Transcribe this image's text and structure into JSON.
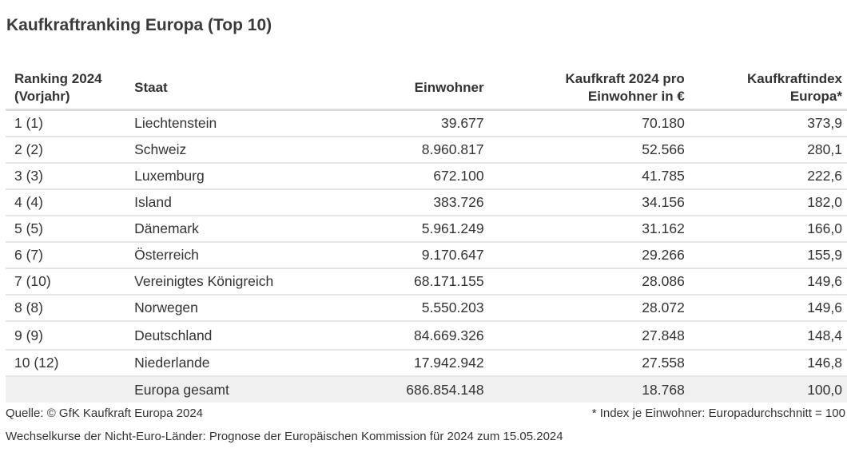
{
  "title": "Kaufkraftranking Europa (Top 10)",
  "table": {
    "headers": {
      "rank_line1": "Ranking 2024",
      "rank_line2": "(Vorjahr)",
      "state": "Staat",
      "population": "Einwohner",
      "kaufkraft_line1": "Kaufkraft 2024 pro",
      "kaufkraft_line2": "Einwohner in €",
      "index_line1": "Kaufkraftindex",
      "index_line2": "Europa*"
    },
    "rows": [
      {
        "rank": "1 (1)",
        "state": "Liechtenstein",
        "population": "39.677",
        "kaufkraft": "70.180",
        "index": "373,9"
      },
      {
        "rank": "2 (2)",
        "state": "Schweiz",
        "population": "8.960.817",
        "kaufkraft": "52.566",
        "index": "280,1"
      },
      {
        "rank": "3 (3)",
        "state": "Luxemburg",
        "population": "672.100",
        "kaufkraft": "41.785",
        "index": "222,6"
      },
      {
        "rank": "4 (4)",
        "state": "Island",
        "population": "383.726",
        "kaufkraft": "34.156",
        "index": "182,0"
      },
      {
        "rank": "5 (5)",
        "state": "Dänemark",
        "population": "5.961.249",
        "kaufkraft": "31.162",
        "index": "166,0"
      },
      {
        "rank": "6 (7)",
        "state": "Österreich",
        "population": "9.170.647",
        "kaufkraft": "29.266",
        "index": "155,9"
      },
      {
        "rank": "7 (10)",
        "state": "Vereinigtes Königreich",
        "population": "68.171.155",
        "kaufkraft": "28.086",
        "index": "149,6"
      },
      {
        "rank": "8 (8)",
        "state": "Norwegen",
        "population": "5.550.203",
        "kaufkraft": "28.072",
        "index": "149,6"
      },
      {
        "rank": "9 (9)",
        "state": "Deutschland",
        "population": "84.669.326",
        "kaufkraft": "27.848",
        "index": "148,4"
      },
      {
        "rank": "10 (12)",
        "state": "Niederlande",
        "population": "17.942.942",
        "kaufkraft": "27.558",
        "index": "146,8"
      }
    ],
    "total": {
      "rank": "",
      "state": "Europa gesamt",
      "population": "686.854.148",
      "kaufkraft": "18.768",
      "index": "100,0"
    }
  },
  "footer": {
    "source": "Quelle: © GfK Kaufkraft Europa 2024",
    "footnote": "* Index je Einwohner: Europadurchschnitt = 100",
    "note": "Wechselkurse der Nicht-Euro-Länder: Prognose der Europäischen Kommission für 2024 zum 15.05.2024"
  }
}
